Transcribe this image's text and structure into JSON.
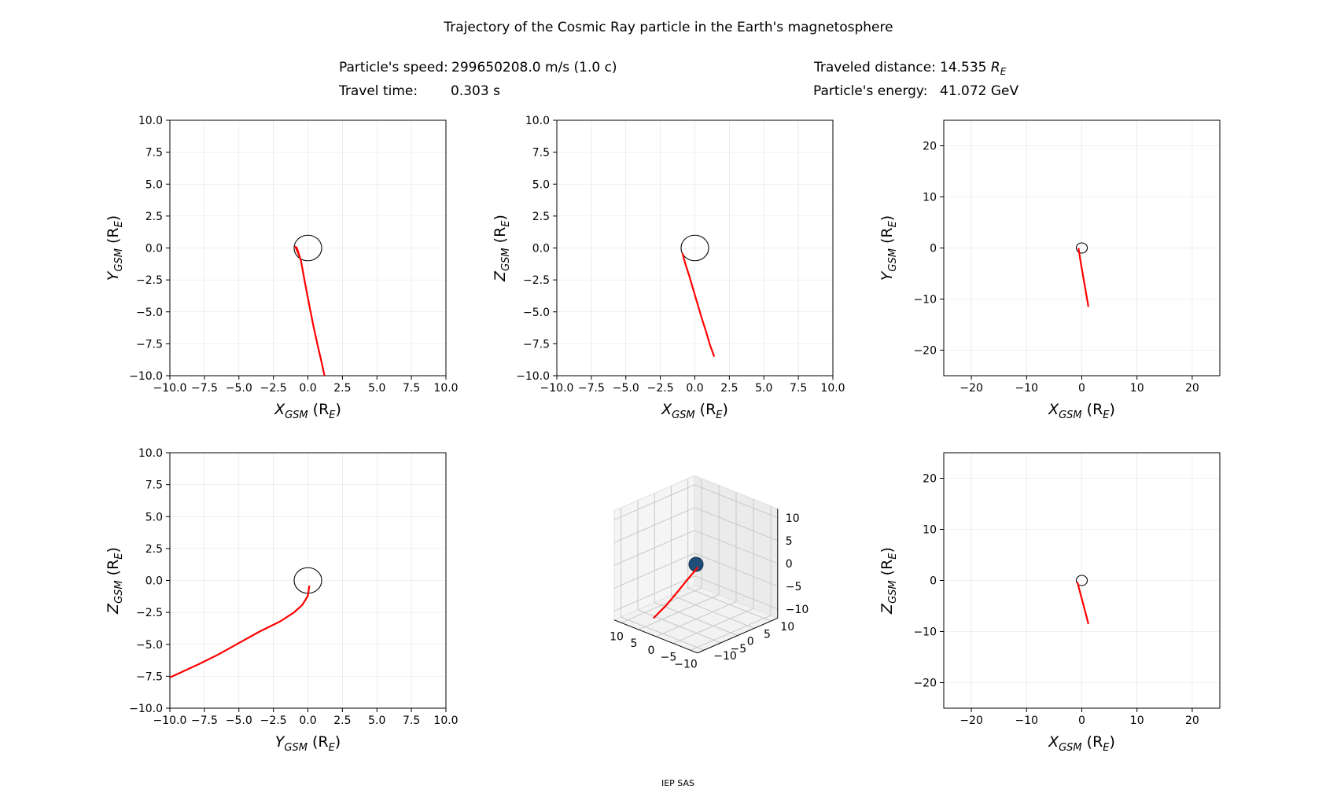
{
  "title": "Trajectory of the Cosmic Ray particle in the Earth's magnetosphere",
  "info": {
    "speed_label": "Particle's speed:",
    "speed_value": "299650208.0 m/s (1.0 c)",
    "time_label": "Travel time:",
    "time_value": "0.303 s",
    "distance_label": "Traveled distance:",
    "distance_value": "14.535",
    "distance_unit_main": "R",
    "distance_unit_sub": "E",
    "energy_label": "Particle's energy:",
    "energy_value": "41.072 GeV"
  },
  "footer": "IEP SAS",
  "colors": {
    "trajectory": "#ff0000",
    "earth_outline": "#000000",
    "earth_3d": "#1f4e79",
    "grid": "#b0b0b0"
  },
  "chart_data": [
    {
      "type": "line",
      "panel": "top-left",
      "xlabel": {
        "main": "X",
        "sub": "GSM",
        "tail": " (R",
        "tsub": "E",
        "close": ")"
      },
      "ylabel": {
        "main": "Y",
        "sub": "GSM",
        "tail": " (R",
        "tsub": "E",
        "close": ")"
      },
      "xlim": [
        -10,
        10
      ],
      "ylim": [
        -10,
        10
      ],
      "xticks": [
        "−10.0",
        "−7.5",
        "−5.0",
        "−2.5",
        "0.0",
        "2.5",
        "5.0",
        "7.5",
        "10.0"
      ],
      "yticks": [
        "−10.0",
        "−7.5",
        "−5.0",
        "−2.5",
        "0.0",
        "2.5",
        "5.0",
        "7.5",
        "10.0"
      ],
      "tickvals": [
        -10,
        -7.5,
        -5,
        -2.5,
        0,
        2.5,
        5,
        7.5,
        10
      ],
      "grid": true,
      "earth_radius": 1,
      "series": [
        {
          "x": [
            -0.6,
            -0.9,
            -0.8,
            -0.5,
            -0.2,
            0.1,
            0.4,
            0.7,
            1.0,
            1.2
          ],
          "y": [
            -0.7,
            0.1,
            0.0,
            -1.0,
            -2.8,
            -4.5,
            -6.1,
            -7.6,
            -9.0,
            -10.0
          ]
        }
      ]
    },
    {
      "type": "line",
      "panel": "top-middle",
      "xlabel": {
        "main": "X",
        "sub": "GSM",
        "tail": " (R",
        "tsub": "E",
        "close": ")"
      },
      "ylabel": {
        "main": "Z",
        "sub": "GSM",
        "tail": " (R",
        "tsub": "E",
        "close": ")"
      },
      "xlim": [
        -10,
        10
      ],
      "ylim": [
        -10,
        10
      ],
      "xticks": [
        "−10.0",
        "−7.5",
        "−5.0",
        "−2.5",
        "0.0",
        "2.5",
        "5.0",
        "7.5",
        "10.0"
      ],
      "yticks": [
        "−10.0",
        "−7.5",
        "−5.0",
        "−2.5",
        "0.0",
        "2.5",
        "5.0",
        "7.5",
        "10.0"
      ],
      "tickvals": [
        -10,
        -7.5,
        -5,
        -2.5,
        0,
        2.5,
        5,
        7.5,
        10
      ],
      "grid": true,
      "earth_radius": 1,
      "series": [
        {
          "x": [
            -0.9,
            -0.7,
            -0.4,
            -0.1,
            0.2,
            0.5,
            0.8,
            1.1,
            1.4
          ],
          "y": [
            -0.4,
            -1.2,
            -2.2,
            -3.3,
            -4.4,
            -5.5,
            -6.5,
            -7.6,
            -8.5
          ]
        }
      ]
    },
    {
      "type": "line",
      "panel": "top-right",
      "xlabel": {
        "main": "X",
        "sub": "GSM",
        "tail": " (R",
        "tsub": "E",
        "close": ")"
      },
      "ylabel": {
        "main": "Y",
        "sub": "GSM",
        "tail": " (R",
        "tsub": "E",
        "close": ")"
      },
      "xlim": [
        -25,
        25
      ],
      "ylim": [
        -25,
        25
      ],
      "xticks": [
        "−20",
        "−10",
        "0",
        "10",
        "20"
      ],
      "yticks": [
        "−20",
        "−10",
        "0",
        "10",
        "20"
      ],
      "tickvals": [
        -20,
        -10,
        0,
        10,
        20
      ],
      "grid": true,
      "earth_radius": 1,
      "series": [
        {
          "x": [
            -0.6,
            -0.2,
            0.4,
            1.2
          ],
          "y": [
            0.0,
            -2.8,
            -6.5,
            -11.5
          ]
        }
      ]
    },
    {
      "type": "line",
      "panel": "bottom-left",
      "xlabel": {
        "main": "Y",
        "sub": "GSM",
        "tail": " (R",
        "tsub": "E",
        "close": ")"
      },
      "ylabel": {
        "main": "Z",
        "sub": "GSM",
        "tail": " (R",
        "tsub": "E",
        "close": ")"
      },
      "xlim": [
        -10,
        10
      ],
      "ylim": [
        -10,
        10
      ],
      "xticks": [
        "−10.0",
        "−7.5",
        "−5.0",
        "−2.5",
        "0.0",
        "2.5",
        "5.0",
        "7.5",
        "10.0"
      ],
      "yticks": [
        "−10.0",
        "−7.5",
        "−5.0",
        "−2.5",
        "0.0",
        "2.5",
        "5.0",
        "7.5",
        "10.0"
      ],
      "tickvals": [
        -10,
        -7.5,
        -5,
        -2.5,
        0,
        2.5,
        5,
        7.5,
        10
      ],
      "grid": true,
      "earth_radius": 1,
      "series": [
        {
          "x": [
            0.1,
            0.0,
            -0.4,
            -1.0,
            -2.0,
            -3.5,
            -5.0,
            -6.5,
            -8.0,
            -10.0
          ],
          "y": [
            -0.4,
            -1.2,
            -1.9,
            -2.5,
            -3.2,
            -4.0,
            -4.9,
            -5.8,
            -6.6,
            -7.6
          ]
        }
      ]
    },
    {
      "type": "line3d",
      "panel": "bottom-middle",
      "xticks": [
        "−10",
        "−5",
        "0",
        "5",
        "10"
      ],
      "yticks": [
        "−10",
        "−5",
        "0",
        "5",
        "10"
      ],
      "zticks": [
        "−10",
        "−5",
        "0",
        "5",
        "10"
      ],
      "tickvals": [
        -10,
        -5,
        0,
        5,
        10
      ],
      "lim": [
        -12,
        12
      ],
      "earth_radius": 1,
      "series": [
        {
          "x": [
            -0.6,
            -0.3,
            0.2,
            0.7,
            1.2
          ],
          "y": [
            0.0,
            -2.8,
            -5.5,
            -8.2,
            -11.5
          ],
          "z": [
            -0.4,
            -2.3,
            -4.5,
            -6.6,
            -8.5
          ]
        }
      ]
    },
    {
      "type": "line",
      "panel": "bottom-right",
      "xlabel": {
        "main": "X",
        "sub": "GSM",
        "tail": " (R",
        "tsub": "E",
        "close": ")"
      },
      "ylabel": {
        "main": "Z",
        "sub": "GSM",
        "tail": " (R",
        "tsub": "E",
        "close": ")"
      },
      "xlim": [
        -25,
        25
      ],
      "ylim": [
        -25,
        25
      ],
      "xticks": [
        "−20",
        "−10",
        "0",
        "10",
        "20"
      ],
      "yticks": [
        "−20",
        "−10",
        "0",
        "10",
        "20"
      ],
      "tickvals": [
        -20,
        -10,
        0,
        10,
        20
      ],
      "grid": true,
      "earth_radius": 1,
      "series": [
        {
          "x": [
            -0.8,
            -0.2,
            0.5,
            1.2
          ],
          "y": [
            -0.3,
            -2.8,
            -5.6,
            -8.5
          ]
        }
      ]
    }
  ]
}
